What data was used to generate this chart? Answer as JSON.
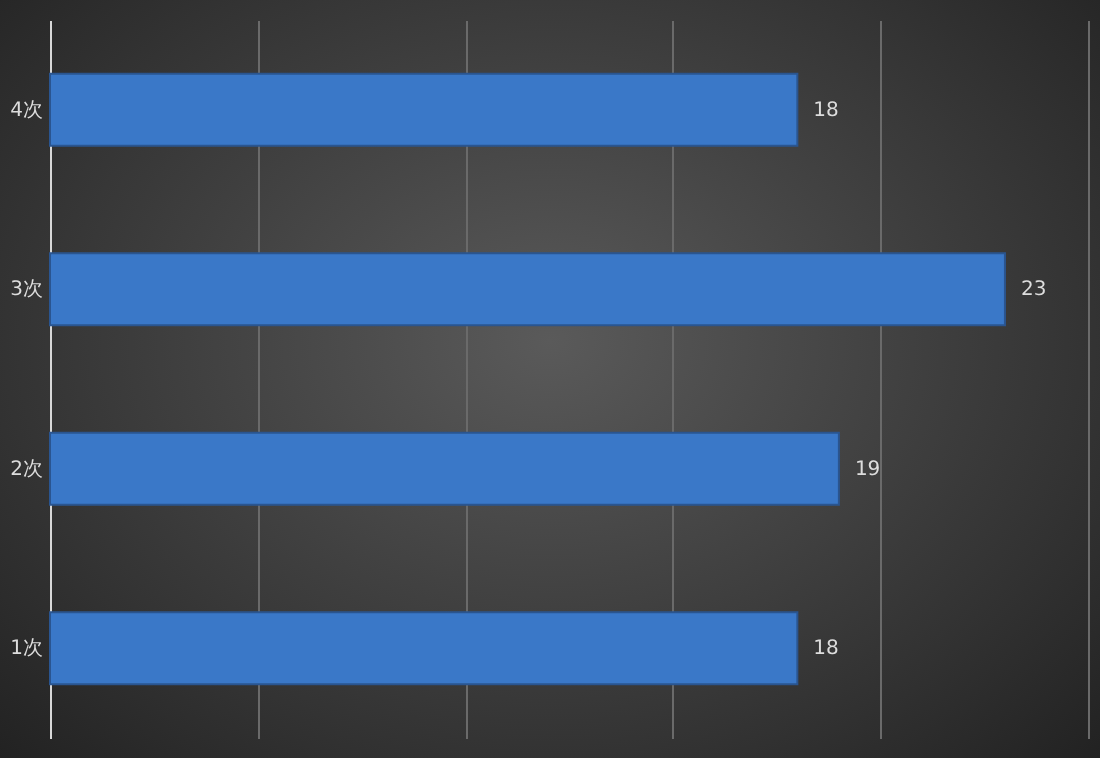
{
  "chart_data": {
    "type": "bar",
    "orientation": "horizontal",
    "categories": [
      "4次",
      "3次",
      "2次",
      "1次"
    ],
    "values": [
      18,
      23,
      19,
      18
    ],
    "color": "#3a78c8",
    "xlim": [
      0,
      25
    ],
    "xticks": [
      {
        "value": 0,
        "label": null
      },
      {
        "value": 5,
        "label": null
      },
      {
        "value": 10,
        "label": null
      },
      {
        "value": 15,
        "label": null
      },
      {
        "value": 20,
        "label": null
      },
      {
        "value": 25,
        "label": null
      }
    ],
    "grid": "x",
    "tick_labels": "y",
    "data_labels": true
  }
}
